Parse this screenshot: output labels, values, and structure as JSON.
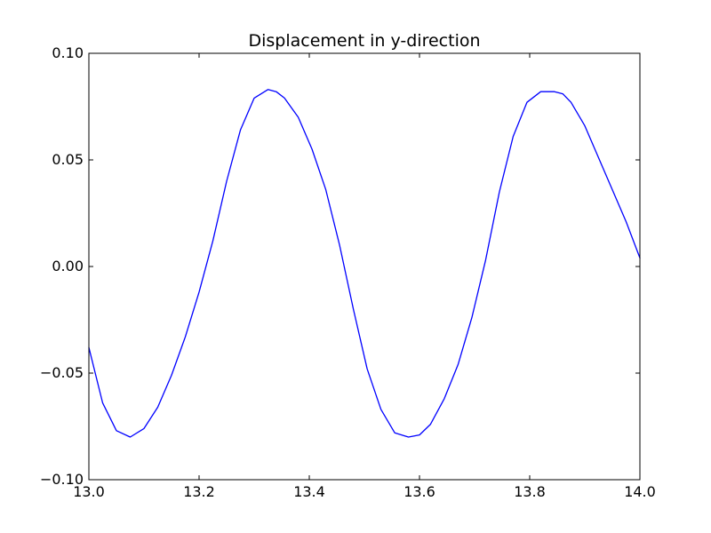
{
  "chart_data": {
    "type": "line",
    "title": "Displacement in y-direction",
    "xlabel": "",
    "ylabel": "",
    "xlim": [
      13.0,
      14.0
    ],
    "ylim": [
      -0.1,
      0.1
    ],
    "x_ticks": [
      13.0,
      13.2,
      13.4,
      13.6,
      13.8,
      14.0
    ],
    "x_tick_labels": [
      "13.0",
      "13.2",
      "13.4",
      "13.6",
      "13.8",
      "14.0"
    ],
    "y_ticks": [
      -0.1,
      -0.05,
      0.0,
      0.05,
      0.1
    ],
    "y_tick_labels": [
      "−0.10",
      "−0.05",
      "0.00",
      "0.05",
      "0.10"
    ],
    "grid": false,
    "legend": "none",
    "series": [
      {
        "color": "#0000ff",
        "x": [
          13.0,
          13.025,
          13.05,
          13.075,
          13.1,
          13.125,
          13.15,
          13.175,
          13.2,
          13.225,
          13.25,
          13.275,
          13.3,
          13.325,
          13.34,
          13.355,
          13.38,
          13.405,
          13.43,
          13.455,
          13.48,
          13.505,
          13.53,
          13.555,
          13.58,
          13.6,
          13.62,
          13.645,
          13.67,
          13.695,
          13.72,
          13.745,
          13.77,
          13.795,
          13.82,
          13.845,
          13.86,
          13.875,
          13.9,
          13.925,
          13.95,
          13.975,
          14.0
        ],
        "y": [
          -0.038,
          -0.064,
          -0.077,
          -0.08,
          -0.076,
          -0.066,
          -0.051,
          -0.033,
          -0.012,
          0.012,
          0.04,
          0.064,
          0.079,
          0.083,
          0.082,
          0.079,
          0.07,
          0.055,
          0.036,
          0.01,
          -0.02,
          -0.048,
          -0.067,
          -0.078,
          -0.08,
          -0.079,
          -0.074,
          -0.062,
          -0.046,
          -0.024,
          0.003,
          0.035,
          0.061,
          0.077,
          0.082,
          0.082,
          0.081,
          0.077,
          0.066,
          0.051,
          0.036,
          0.021,
          0.004
        ]
      }
    ]
  }
}
